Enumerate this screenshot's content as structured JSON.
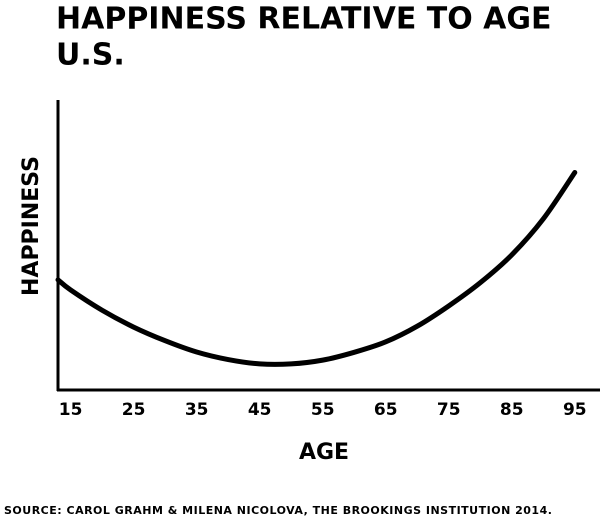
{
  "chart_data": {
    "type": "line",
    "title": "HAPPINESS  RELATIVE TO AGE",
    "subtitle": "U.S.",
    "x_label": "AGE",
    "y_label": "HAPPINESS",
    "source": "SOURCE: CAROL GRAHM & MILENA NICOLOVA, THE BROOKINGS INSTITUTION 2014.",
    "x": [
      13,
      15,
      20,
      25,
      30,
      35,
      40,
      45,
      50,
      55,
      60,
      65,
      70,
      75,
      80,
      85,
      90,
      95
    ],
    "series": [
      {
        "name": "Happiness",
        "color": "#000000",
        "values": [
          38,
          34.5,
          27.5,
          21.7,
          17,
          13.1,
          10.5,
          9,
          9,
          10.3,
          13,
          16.6,
          22,
          29,
          37,
          46.6,
          59,
          75
        ]
      }
    ],
    "xlim": [
      13,
      99
    ],
    "ylim": [
      0,
      100
    ],
    "xticks": [
      15,
      25,
      35,
      45,
      55,
      65,
      75,
      85,
      95
    ]
  }
}
